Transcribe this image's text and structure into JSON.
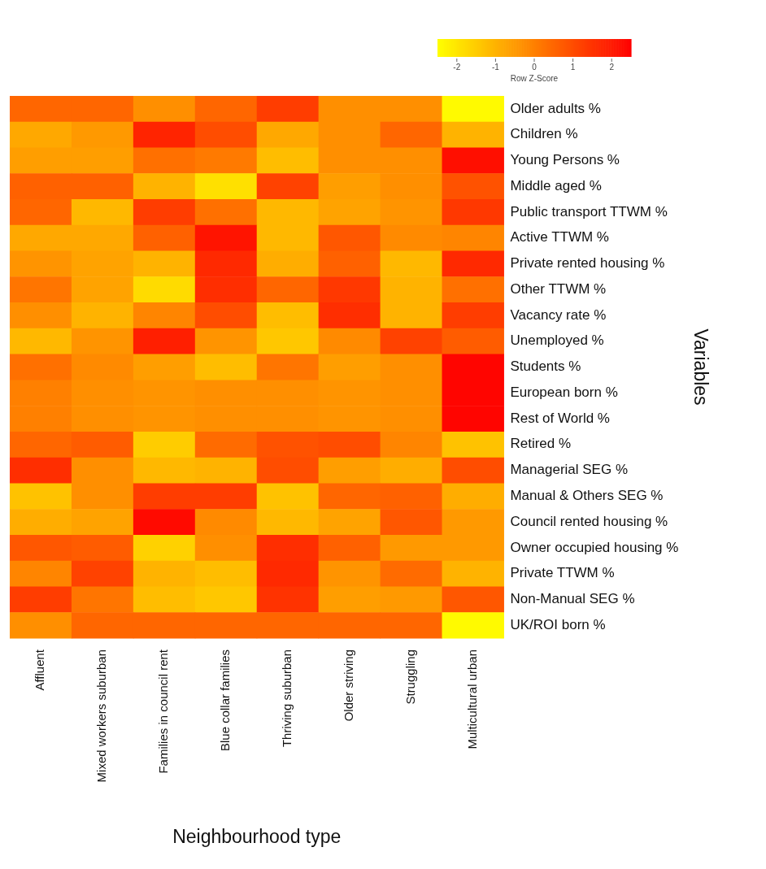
{
  "chart_data": {
    "type": "heatmap",
    "xlabel": "Neighbourhood type",
    "ylabel": "Variables",
    "clabel": "Row Z-Score",
    "categories": [
      "Affluent",
      "Mixed workers suburban",
      "Families in council rent",
      "Blue collar families",
      "Thriving suburban",
      "Older striving",
      "Struggling",
      "Multicultural urban"
    ],
    "y_categories": [
      "Older adults %",
      "Children %",
      "Young Persons %",
      "Middle aged %",
      "Public transport TTWM %",
      "Active TTWM %",
      "Private rented housing %",
      "Other TTWM %",
      "Vacancy rate %",
      "Unemployed %",
      "Students %",
      "European born %",
      "Rest of World %",
      "Retired %",
      "Managerial SEG %",
      "Manual & Others SEG %",
      "Council rented housing %",
      "Owner occupied housing %",
      "Private TTWM %",
      "Non-Manual SEG %",
      "UK/ROI born %"
    ],
    "cells": [
      [
        0.5,
        0.5,
        -0.3,
        0.5,
        1.3,
        -0.3,
        -0.3,
        -2.4
      ],
      [
        -0.8,
        -0.5,
        1.8,
        1.0,
        -0.8,
        -0.3,
        0.5,
        -1.0
      ],
      [
        -0.6,
        -0.6,
        0.3,
        0.1,
        -1.2,
        -0.3,
        -0.3,
        2.2
      ],
      [
        0.6,
        0.6,
        -1.0,
        -1.9,
        1.2,
        -0.6,
        -0.3,
        0.9
      ],
      [
        0.5,
        -1.1,
        1.3,
        0.3,
        -1.1,
        -0.7,
        -0.4,
        1.4
      ],
      [
        -0.8,
        -0.8,
        0.6,
        2.1,
        -1.1,
        0.8,
        -0.2,
        -0.1
      ],
      [
        -0.4,
        -0.7,
        -1.0,
        1.7,
        -0.9,
        0.6,
        -1.1,
        1.7
      ],
      [
        0.2,
        -0.7,
        -1.8,
        1.6,
        0.5,
        1.4,
        -1.0,
        0.3
      ],
      [
        -0.3,
        -1.0,
        -0.1,
        1.0,
        -1.2,
        1.6,
        -1.0,
        1.3
      ],
      [
        -1.1,
        -0.4,
        1.9,
        -0.4,
        -1.4,
        -0.2,
        1.2,
        0.7
      ],
      [
        0.3,
        -0.2,
        -0.6,
        -1.2,
        0.2,
        -0.6,
        -0.3,
        2.4
      ],
      [
        0.0,
        -0.3,
        -0.4,
        -0.3,
        -0.3,
        -0.4,
        -0.3,
        2.4
      ],
      [
        0.0,
        -0.3,
        -0.4,
        -0.3,
        -0.3,
        -0.4,
        -0.3,
        2.4
      ],
      [
        0.5,
        0.7,
        -1.5,
        0.4,
        0.9,
        1.0,
        -0.1,
        -1.3
      ],
      [
        1.6,
        -0.3,
        -1.1,
        -1.0,
        1.0,
        -0.6,
        -0.9,
        1.0
      ],
      [
        -1.3,
        -0.3,
        1.3,
        1.3,
        -1.3,
        0.5,
        0.6,
        -0.9
      ],
      [
        -0.9,
        -0.7,
        2.3,
        -0.2,
        -1.1,
        -0.7,
        0.8,
        -0.5
      ],
      [
        0.8,
        0.7,
        -1.6,
        -0.3,
        1.6,
        0.6,
        -0.5,
        -0.5
      ],
      [
        -0.1,
        1.2,
        -1.0,
        -1.2,
        1.7,
        -0.4,
        0.4,
        -1.0
      ],
      [
        1.3,
        0.2,
        -1.2,
        -1.4,
        1.5,
        -0.6,
        -0.5,
        0.8
      ],
      [
        -0.3,
        0.5,
        0.5,
        0.5,
        0.5,
        0.5,
        0.5,
        -2.4
      ]
    ],
    "clim": [
      -2.5,
      2.5
    ],
    "cticks": [
      -2,
      -1,
      0,
      1,
      2
    ]
  }
}
